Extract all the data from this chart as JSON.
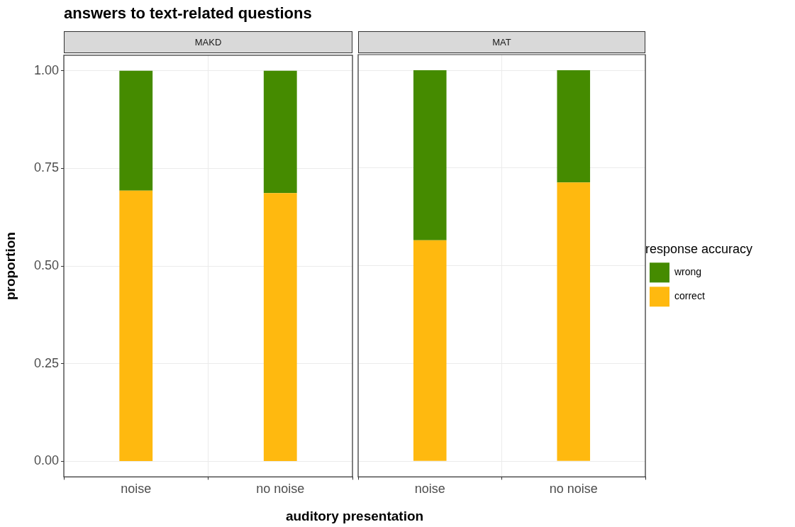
{
  "chart_data": [
    {
      "type": "bar",
      "title": "answers to text-related questions",
      "subtitle": "MAKD",
      "xlabel": "auditory presentation",
      "ylabel": "proportion",
      "categories": [
        "noise",
        "no noise"
      ],
      "stacked": true,
      "series": [
        {
          "color": "#ffb90f",
          "values": [
            0.693,
            0.687
          ]
        },
        {
          "color": "#458b00",
          "values": [
            0.307,
            0.313
          ]
        }
      ],
      "ylim": [
        -0.04,
        1.04
      ],
      "yticks": [
        {
          "value": 0,
          "label": "0.00"
        },
        {
          "value": 0.25,
          "label": "0.25"
        },
        {
          "value": 0.5,
          "label": "0.50"
        },
        {
          "value": 0.75,
          "label": "0.75"
        },
        {
          "value": 1,
          "label": "1.00"
        }
      ],
      "grid": true,
      "legend": false
    },
    {
      "type": "bar",
      "subtitle": "MAT",
      "legend_title": "response accuracy",
      "categories": [
        "noise",
        "no noise"
      ],
      "stacked": true,
      "series": [
        {
          "name": "correct",
          "color": "#ffb90f",
          "values": [
            0.565,
            0.713
          ]
        },
        {
          "name": "wrong",
          "color": "#458b00",
          "values": [
            0.435,
            0.287
          ]
        }
      ],
      "ylim": [
        -0.04,
        1.04
      ],
      "yticks": [
        0,
        0.25,
        0.5,
        0.75,
        1
      ],
      "grid": true,
      "legend": "right",
      "tick_labels": "x"
    }
  ]
}
